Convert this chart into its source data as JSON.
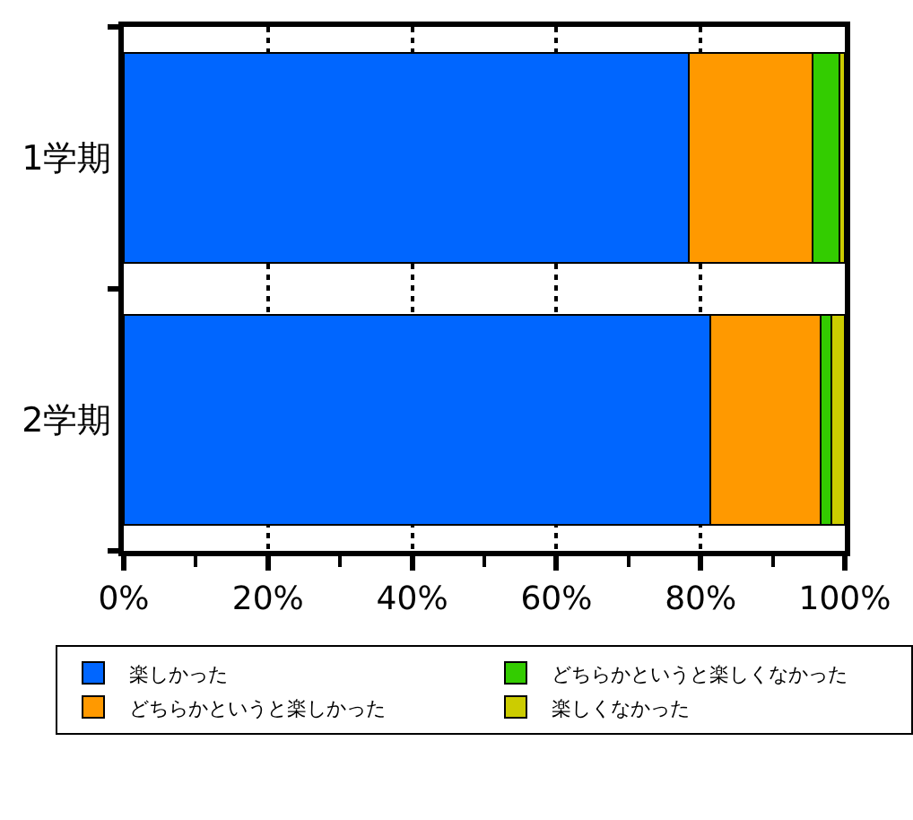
{
  "chart_data": {
    "type": "bar",
    "orientation": "horizontal",
    "stacked": true,
    "categories": [
      "1学期",
      "2学期"
    ],
    "series": [
      {
        "name": "楽しかった",
        "color": "#0066ff",
        "values": [
          78.4,
          81.3
        ]
      },
      {
        "name": "どちらかというと楽しかった",
        "color": "#ff9900",
        "values": [
          17.1,
          15.4
        ]
      },
      {
        "name": "どちらかというと楽しくなかった",
        "color": "#33cc00",
        "values": [
          3.8,
          1.4
        ]
      },
      {
        "name": "楽しくなかった",
        "color": "#cccc00",
        "values": [
          0.7,
          1.9
        ]
      }
    ],
    "xlim": [
      0,
      100
    ],
    "xticks": [
      {
        "value": 0,
        "label": "0%"
      },
      {
        "value": 20,
        "label": "20%"
      },
      {
        "value": 40,
        "label": "40%"
      },
      {
        "value": 60,
        "label": "60%"
      },
      {
        "value": 80,
        "label": "80%"
      },
      {
        "value": 100,
        "label": "100%"
      }
    ],
    "grid": "x",
    "legend": "bottom"
  }
}
